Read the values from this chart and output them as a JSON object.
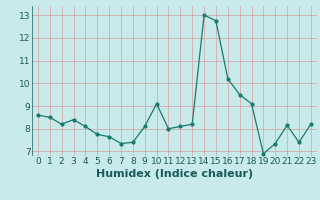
{
  "x": [
    0,
    1,
    2,
    3,
    4,
    5,
    6,
    7,
    8,
    9,
    10,
    11,
    12,
    13,
    14,
    15,
    16,
    17,
    18,
    19,
    20,
    21,
    22,
    23
  ],
  "y": [
    8.6,
    8.5,
    8.2,
    8.4,
    8.1,
    7.75,
    7.65,
    7.35,
    7.4,
    8.1,
    9.1,
    8.0,
    8.1,
    8.2,
    13.0,
    12.75,
    10.2,
    9.5,
    9.1,
    6.9,
    7.35,
    8.15,
    7.4,
    8.2
  ],
  "xlabel": "Humidex (Indice chaleur)",
  "ylim": [
    6.8,
    13.4
  ],
  "xlim": [
    -0.5,
    23.5
  ],
  "line_color": "#1a7a6e",
  "bg_color": "#c8eaea",
  "grid_color": "#d4a0a0",
  "tick_fontsize": 6.5,
  "label_fontsize": 8.0,
  "yticks": [
    7,
    8,
    9,
    10,
    11,
    12,
    13
  ]
}
